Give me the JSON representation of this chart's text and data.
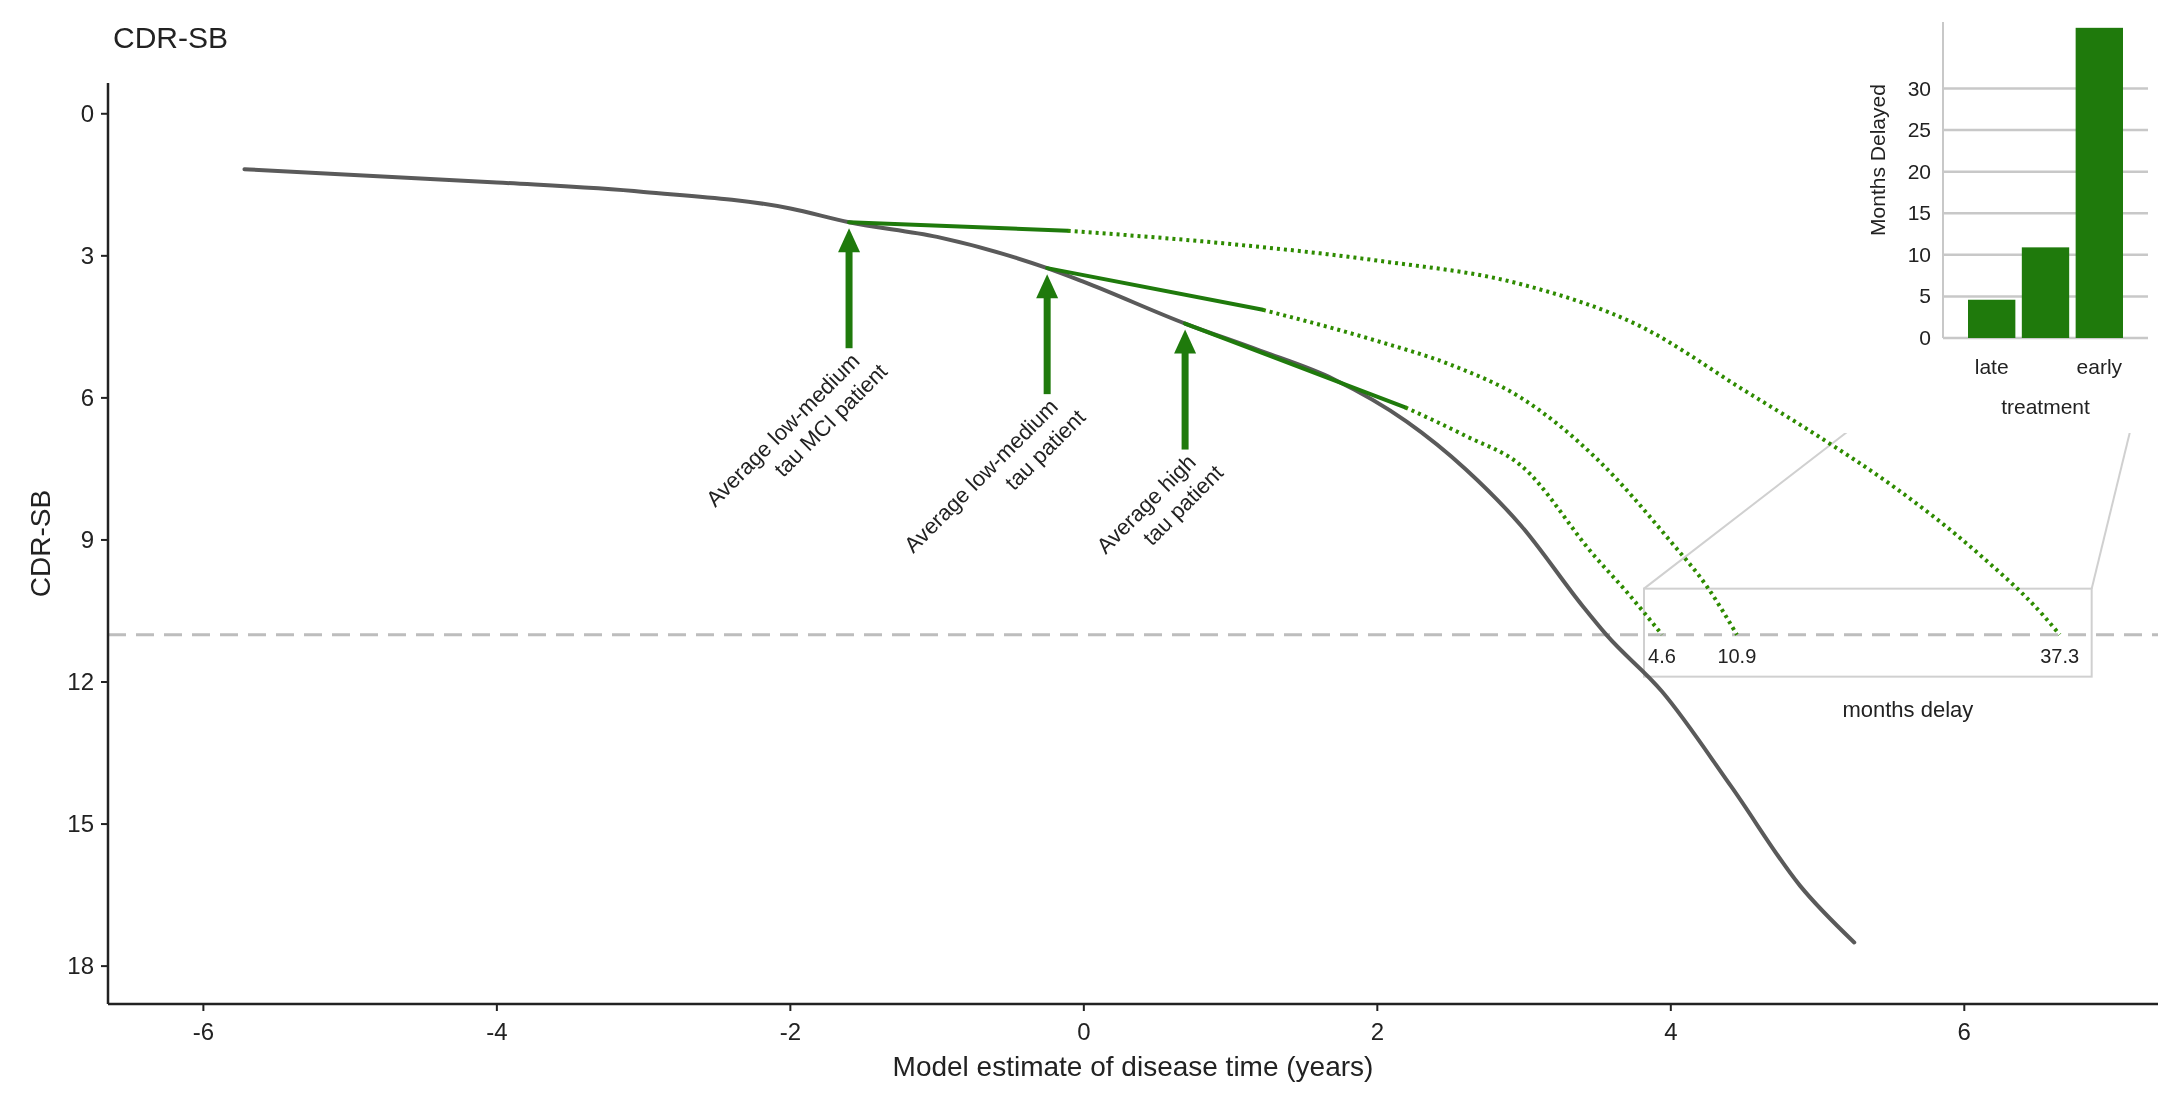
{
  "chart_data": [
    {
      "type": "line",
      "title": "CDR-SB",
      "xlabel": "Model estimate of disease time (years)",
      "ylabel": "CDR-SB",
      "xlim": [
        -6.65,
        7.32
      ],
      "ylim": [
        18.8,
        -0.65
      ],
      "xticks": [
        -6,
        -4,
        -2,
        0,
        2,
        4,
        6
      ],
      "yticks": [
        0,
        3,
        6,
        9,
        12,
        15,
        18
      ],
      "grid": false,
      "marker": "none",
      "series": [
        {
          "color": "#5a5a5a",
          "line_style": "solid",
          "x": [
            -5.72,
            -4,
            -3,
            -2,
            -1.6,
            -1,
            -0.25,
            0,
            0.69,
            1.2,
            1.7,
            2.2,
            2.6,
            2.98,
            3.4,
            3.56,
            3.94,
            4.41,
            4.88,
            5.25
          ],
          "values": [
            1.17,
            1.45,
            1.65,
            2.0,
            2.29,
            2.6,
            3.26,
            3.55,
            4.43,
            5.0,
            5.6,
            6.5,
            7.5,
            8.7,
            10.4,
            11,
            12.2,
            14.2,
            16.3,
            17.5
          ]
        },
        {
          "color": "#1f7a0c",
          "line_style": "solid",
          "x": [
            -1.6,
            -0.11
          ],
          "values": [
            2.29,
            2.47
          ]
        },
        {
          "color": "#2e8b00",
          "line_style": "dotted",
          "x": [
            -0.11,
            1.0,
            2.0,
            2.98,
            3.8,
            4.5,
            5.0,
            5.53,
            6.1,
            6.54,
            6.65
          ],
          "values": [
            2.47,
            2.75,
            3.1,
            3.6,
            4.5,
            5.84,
            6.8,
            7.9,
            9.3,
            10.6,
            11
          ]
        },
        {
          "color": "#1f7a0c",
          "line_style": "solid",
          "x": [
            -0.25,
            1.22
          ],
          "values": [
            3.26,
            4.14
          ]
        },
        {
          "color": "#2e8b00",
          "line_style": "dotted",
          "x": [
            1.22,
            2.0,
            2.5,
            2.98,
            3.5,
            3.99,
            4.25,
            4.45
          ],
          "values": [
            4.14,
            4.8,
            5.3,
            6.0,
            7.3,
            9.0,
            10.0,
            11
          ]
        },
        {
          "color": "#1f7a0c",
          "line_style": "solid",
          "x": [
            0.69,
            2.19
          ],
          "values": [
            4.43,
            6.2
          ]
        },
        {
          "color": "#2e8b00",
          "line_style": "dotted",
          "x": [
            2.19,
            2.6,
            2.98,
            3.48,
            3.7,
            3.94
          ],
          "values": [
            6.2,
            6.8,
            7.43,
            9.34,
            10.1,
            11
          ]
        }
      ],
      "ref_lines": [
        {
          "axis": "y",
          "value": 11,
          "color": "#bdbdbd",
          "line_style": "dashed"
        }
      ],
      "annotations": [
        "Average low-medium\ntau MCI patient",
        "Average low-medium\ntau patient",
        "Average high\ntau patient",
        "months delay",
        {
          "text": "4.6",
          "x": 3.94,
          "y": 11
        },
        {
          "text": "10.9",
          "x": 4.45,
          "y": 11
        },
        {
          "text": "37.3",
          "x": 6.65,
          "y": 11
        }
      ]
    },
    {
      "type": "bar",
      "xlabel": "treatment",
      "ylabel": "Months Delayed",
      "categories": [
        "late",
        null,
        "early"
      ],
      "values": [
        4.6,
        10.9,
        37.3
      ],
      "color": "#1f7a0c",
      "ylim": [
        0,
        38
      ],
      "yticks": [
        0,
        5,
        10,
        15,
        20,
        25,
        30
      ],
      "grid": "y"
    }
  ]
}
